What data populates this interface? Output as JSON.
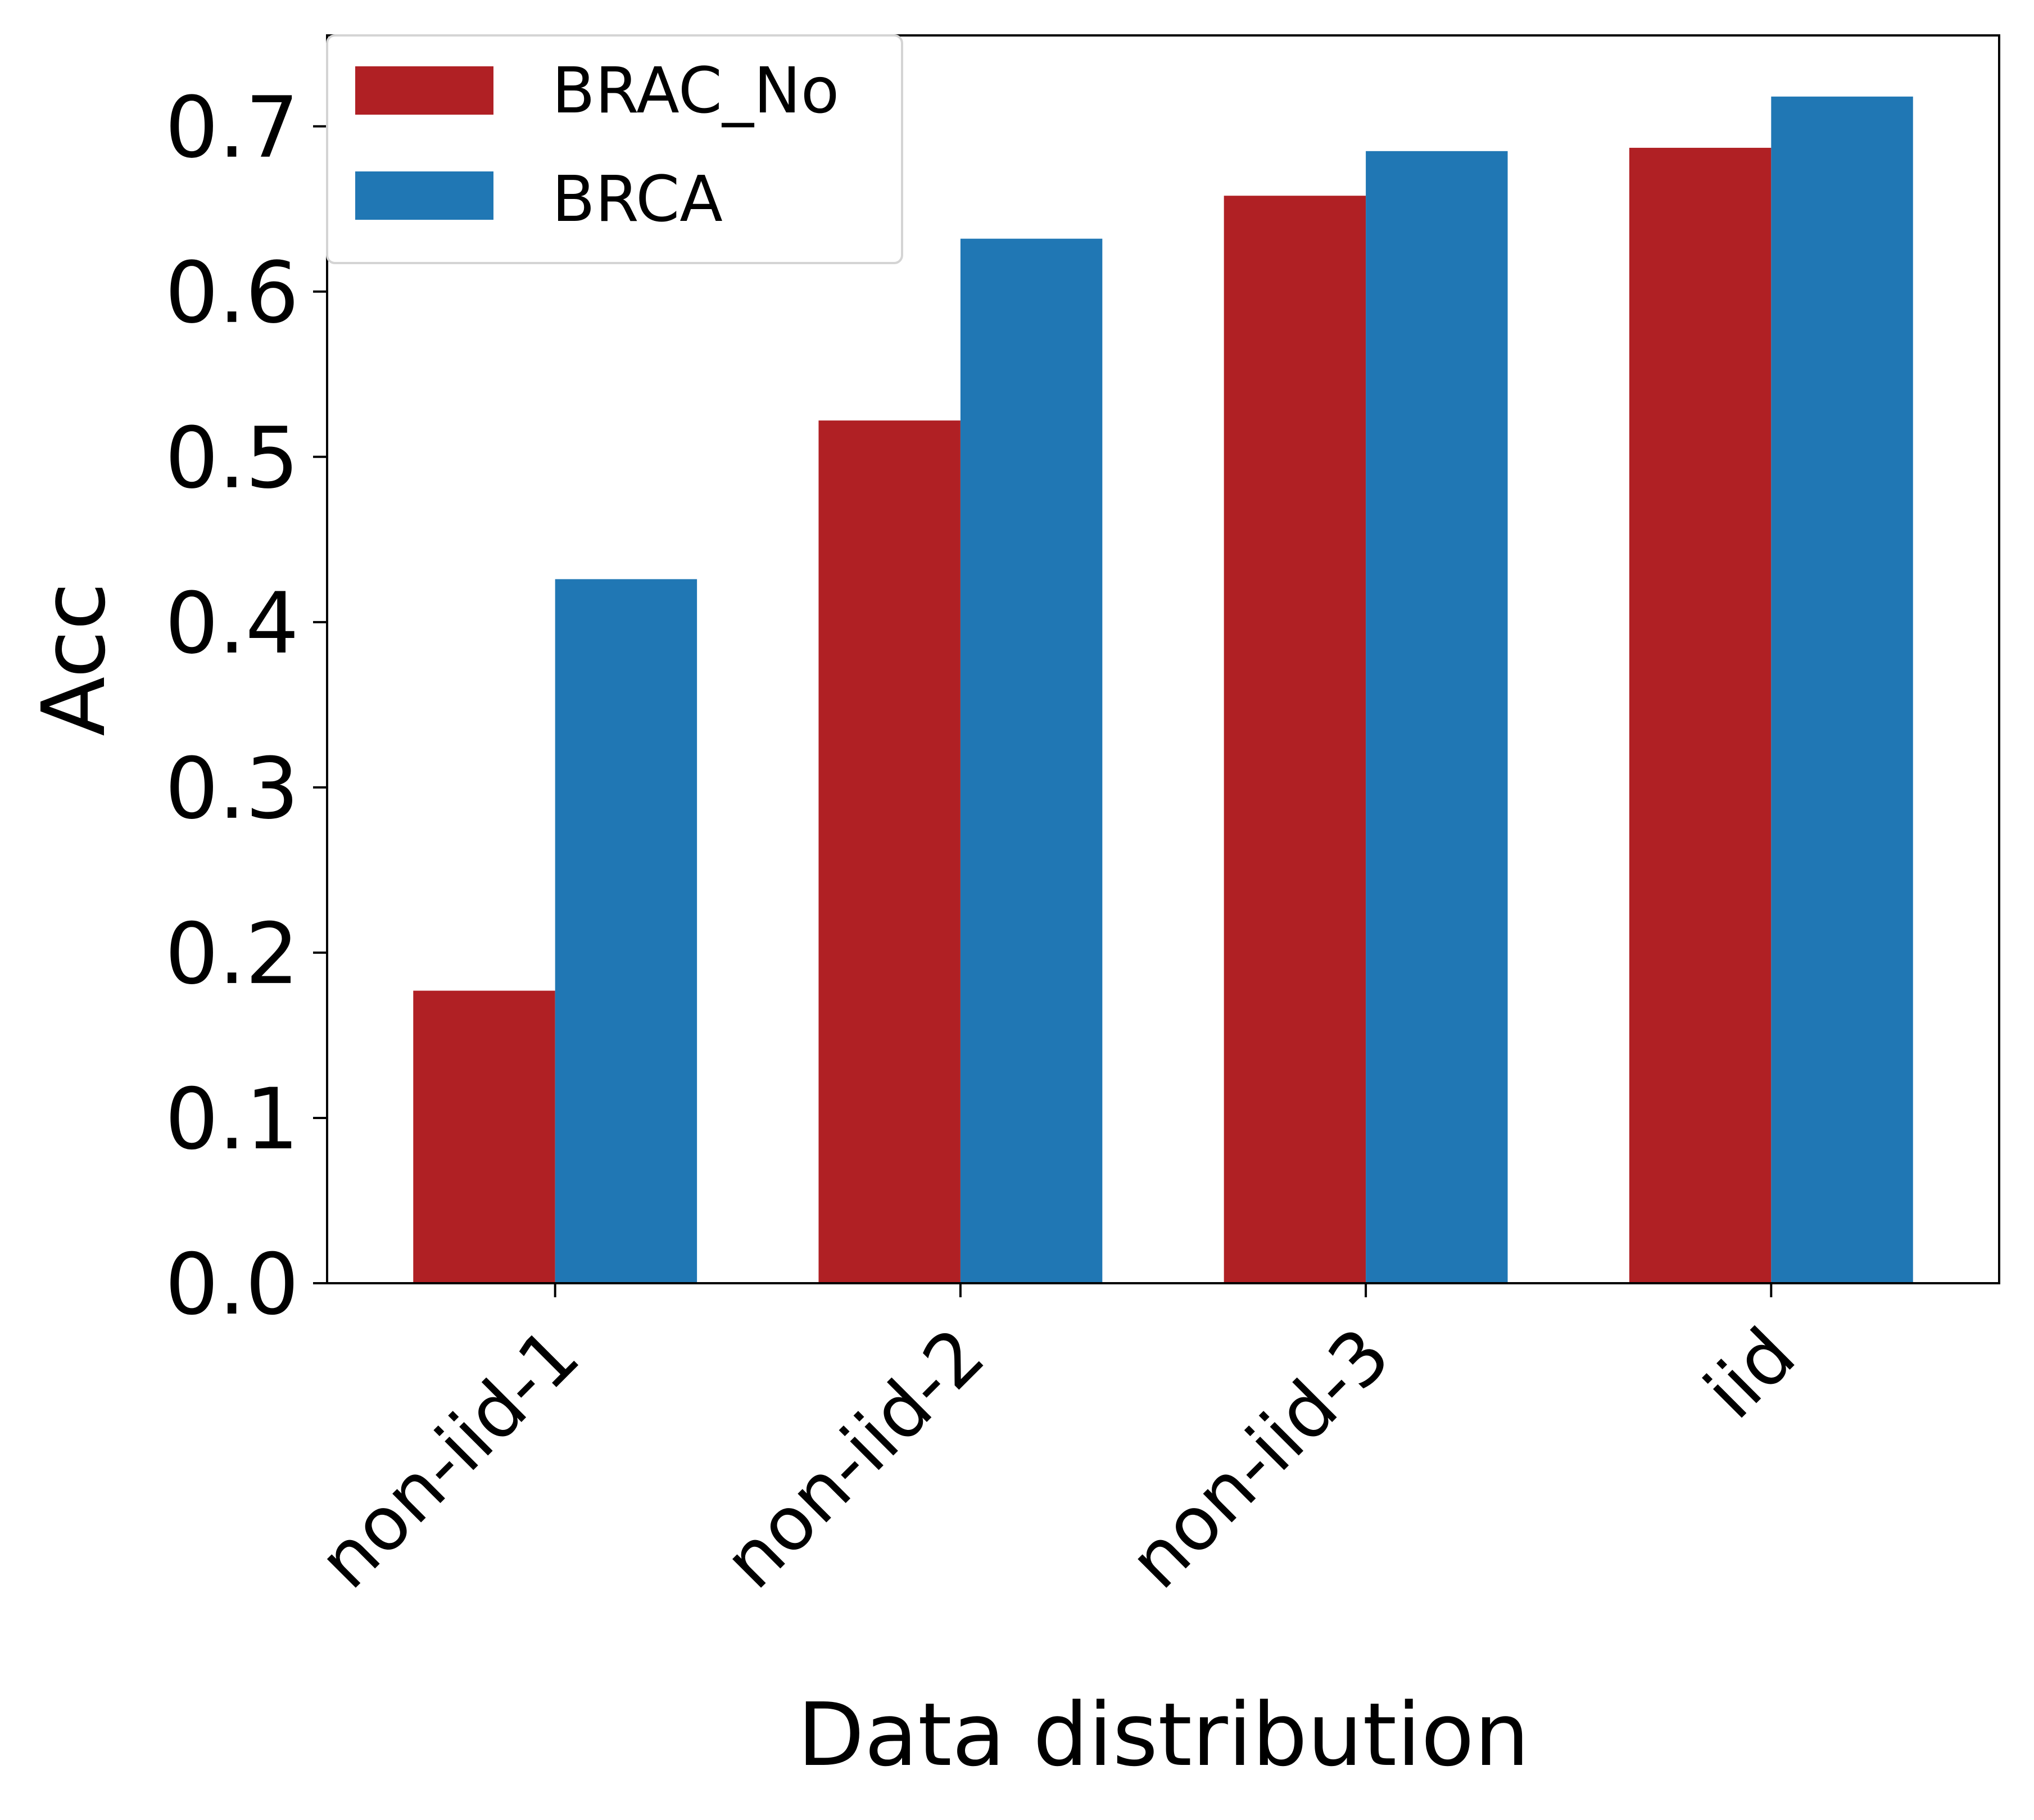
{
  "chart_data": {
    "type": "bar",
    "title": "",
    "xlabel": "Data distribution",
    "ylabel": "Acc",
    "categories": [
      "non-iid-1",
      "non-iid-2",
      "non-iid-3",
      "iid"
    ],
    "series": [
      {
        "name": "BRAC_No",
        "color": "#b02024",
        "values": [
          0.177,
          0.522,
          0.658,
          0.687
        ]
      },
      {
        "name": "BRCA",
        "color": "#2077b4",
        "values": [
          0.426,
          0.632,
          0.685,
          0.718
        ]
      }
    ],
    "ylim": [
      0,
      0.755
    ],
    "yticks": [
      0.0,
      0.1,
      0.2,
      0.3,
      0.4,
      0.5,
      0.6,
      0.7
    ],
    "ytick_labels": [
      "0.0",
      "0.1",
      "0.2",
      "0.3",
      "0.4",
      "0.5",
      "0.6",
      "0.7"
    ],
    "grid": false,
    "legend_position": "top-left"
  }
}
